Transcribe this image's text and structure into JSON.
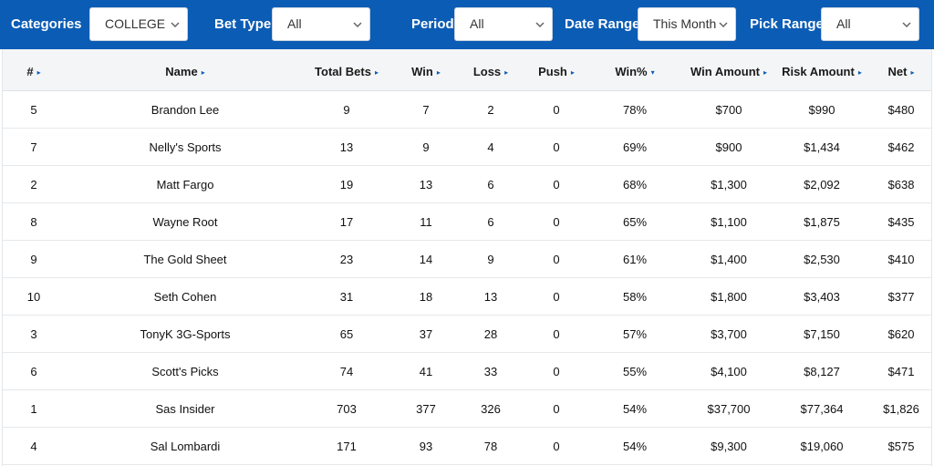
{
  "filters": {
    "categories": {
      "label": "Categories",
      "value": "COLLEGE"
    },
    "bet_type": {
      "label": "Bet Type",
      "value": "All"
    },
    "period": {
      "label": "Period",
      "value": "All"
    },
    "date_range": {
      "label": "Date Range",
      "value": "This Month"
    },
    "pick_range": {
      "label": "Pick Range",
      "value": "All"
    }
  },
  "table": {
    "headers": [
      "#",
      "Name",
      "Total Bets",
      "Win",
      "Loss",
      "Push",
      "Win%",
      "Win Amount",
      "Risk Amount",
      "Net"
    ],
    "sort_icons": [
      "right",
      "right",
      "right",
      "right",
      "right",
      "right",
      "down",
      "right",
      "right",
      "right"
    ],
    "rows": [
      [
        "5",
        "Brandon Lee",
        "9",
        "7",
        "2",
        "0",
        "78%",
        "$700",
        "$990",
        "$480"
      ],
      [
        "7",
        "Nelly's Sports",
        "13",
        "9",
        "4",
        "0",
        "69%",
        "$900",
        "$1,434",
        "$462"
      ],
      [
        "2",
        "Matt Fargo",
        "19",
        "13",
        "6",
        "0",
        "68%",
        "$1,300",
        "$2,092",
        "$638"
      ],
      [
        "8",
        "Wayne Root",
        "17",
        "11",
        "6",
        "0",
        "65%",
        "$1,100",
        "$1,875",
        "$435"
      ],
      [
        "9",
        "The Gold Sheet",
        "23",
        "14",
        "9",
        "0",
        "61%",
        "$1,400",
        "$2,530",
        "$410"
      ],
      [
        "10",
        "Seth Cohen",
        "31",
        "18",
        "13",
        "0",
        "58%",
        "$1,800",
        "$3,403",
        "$377"
      ],
      [
        "3",
        "TonyK 3G-Sports",
        "65",
        "37",
        "28",
        "0",
        "57%",
        "$3,700",
        "$7,150",
        "$620"
      ],
      [
        "6",
        "Scott's Picks",
        "74",
        "41",
        "33",
        "0",
        "55%",
        "$4,100",
        "$8,127",
        "$471"
      ],
      [
        "1",
        "Sas Insider",
        "703",
        "377",
        "326",
        "0",
        "54%",
        "$37,700",
        "$77,364",
        "$1,826"
      ],
      [
        "4",
        "Sal Lombardi",
        "171",
        "93",
        "78",
        "0",
        "54%",
        "$9,300",
        "$19,060",
        "$575"
      ]
    ]
  },
  "colors": {
    "header_bar": "#0b5cb5",
    "sort_icon": "#0b5cb5",
    "table_head_bg": "#f4f5f6"
  }
}
